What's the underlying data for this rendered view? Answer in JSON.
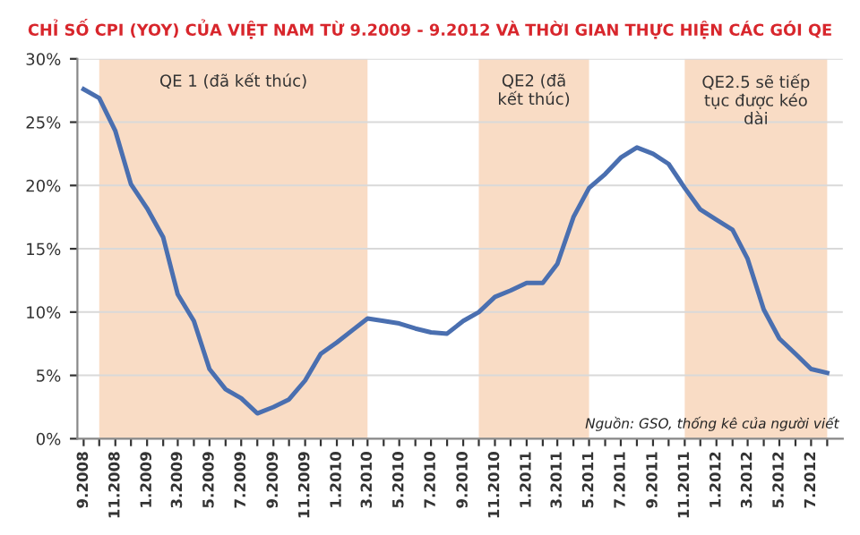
{
  "chart_data": {
    "type": "line",
    "title": "CHỈ SỐ CPI (YOY) CỦA VIỆT NAM TỪ 9.2009 - 9.2012 VÀ THỜI GIAN THỰC HIỆN CÁC GÓI QE",
    "x": [
      "2008-09",
      "2008-10",
      "2008-11",
      "2008-12",
      "2009-01",
      "2009-02",
      "2009-03",
      "2009-04",
      "2009-05",
      "2009-06",
      "2009-07",
      "2009-08",
      "2009-09",
      "2009-10",
      "2009-11",
      "2009-12",
      "2010-01",
      "2010-02",
      "2010-03",
      "2010-04",
      "2010-05",
      "2010-06",
      "2010-07",
      "2010-08",
      "2010-09",
      "2010-10",
      "2010-11",
      "2010-12",
      "2011-01",
      "2011-02",
      "2011-03",
      "2011-04",
      "2011-05",
      "2011-06",
      "2011-07",
      "2011-08",
      "2011-09",
      "2011-10",
      "2011-11",
      "2011-12",
      "2012-01",
      "2012-02",
      "2012-03",
      "2012-04",
      "2012-05",
      "2012-06",
      "2012-07",
      "2012-08"
    ],
    "series": [
      {
        "color": "#4a6fb0",
        "values": [
          27.6,
          26.9,
          24.3,
          20.1,
          18.2,
          15.9,
          11.4,
          9.3,
          5.5,
          3.9,
          3.2,
          2.0,
          2.5,
          3.1,
          4.6,
          6.7,
          7.6,
          8.6,
          9.5,
          9.3,
          9.1,
          8.7,
          8.4,
          8.3,
          9.3,
          10.0,
          11.2,
          11.7,
          12.3,
          12.3,
          13.8,
          17.5,
          19.8,
          20.9,
          22.2,
          23.0,
          22.5,
          21.7,
          19.8,
          18.1,
          17.3,
          16.5,
          14.2,
          10.2,
          7.9,
          6.7,
          5.5,
          5.2
        ]
      }
    ],
    "xlim": [
      "2008-08-20",
      "2012-08-31"
    ],
    "xticks": [
      {
        "value": "2008-09",
        "label": "9.2008"
      },
      {
        "value": "2008-10",
        "label": null
      },
      {
        "value": "2008-11",
        "label": "11.2008"
      },
      {
        "value": "2008-12",
        "label": null
      },
      {
        "value": "2009-01",
        "label": "1.2009"
      },
      {
        "value": "2009-02",
        "label": null
      },
      {
        "value": "2009-03",
        "label": "3.2009"
      },
      {
        "value": "2009-04",
        "label": null
      },
      {
        "value": "2009-05",
        "label": "5.2009"
      },
      {
        "value": "2009-06",
        "label": null
      },
      {
        "value": "2009-07",
        "label": "7.2009"
      },
      {
        "value": "2009-08",
        "label": null
      },
      {
        "value": "2009-09",
        "label": "9.2009"
      },
      {
        "value": "2009-10",
        "label": null
      },
      {
        "value": "2009-11",
        "label": "11.2009"
      },
      {
        "value": "2009-12",
        "label": null
      },
      {
        "value": "2010-01",
        "label": "1.2010"
      },
      {
        "value": "2010-02",
        "label": null
      },
      {
        "value": "2010-03",
        "label": "3.2010"
      },
      {
        "value": "2010-04",
        "label": null
      },
      {
        "value": "2010-05",
        "label": "5.2010"
      },
      {
        "value": "2010-06",
        "label": null
      },
      {
        "value": "2010-07",
        "label": "7.2010"
      },
      {
        "value": "2010-08",
        "label": null
      },
      {
        "value": "2010-09",
        "label": "9.2010"
      },
      {
        "value": "2010-10",
        "label": null
      },
      {
        "value": "2010-11",
        "label": "11.2010"
      },
      {
        "value": "2010-12",
        "label": null
      },
      {
        "value": "2011-01",
        "label": "1.2011"
      },
      {
        "value": "2011-02",
        "label": null
      },
      {
        "value": "2011-03",
        "label": "3.2011"
      },
      {
        "value": "2011-04",
        "label": null
      },
      {
        "value": "2011-05",
        "label": "5.2011"
      },
      {
        "value": "2011-06",
        "label": null
      },
      {
        "value": "2011-07",
        "label": "7.2011"
      },
      {
        "value": "2011-08",
        "label": null
      },
      {
        "value": "2011-09",
        "label": "9.2011"
      },
      {
        "value": "2011-10",
        "label": null
      },
      {
        "value": "2011-11",
        "label": "11.2011"
      },
      {
        "value": "2011-12",
        "label": null
      },
      {
        "value": "2012-01",
        "label": "1.2012"
      },
      {
        "value": "2012-02",
        "label": null
      },
      {
        "value": "2012-03",
        "label": "3.2012"
      },
      {
        "value": "2012-04",
        "label": null
      },
      {
        "value": "2012-05",
        "label": "5.2012"
      },
      {
        "value": "2012-06",
        "label": null
      },
      {
        "value": "2012-07",
        "label": "7.2012"
      },
      {
        "value": "2012-08",
        "label": null
      }
    ],
    "ylim": [
      0,
      30
    ],
    "yticks": [
      {
        "value": 0,
        "label": "0%"
      },
      {
        "value": 5,
        "label": "5%"
      },
      {
        "value": 10,
        "label": "10%"
      },
      {
        "value": 15,
        "label": "15%"
      },
      {
        "value": 20,
        "label": "20%"
      },
      {
        "value": 25,
        "label": "25%"
      },
      {
        "value": 30,
        "label": "30%"
      }
    ],
    "grid": "y",
    "bands": [
      {
        "axis": "x",
        "from": "2008-10",
        "to": "2010-03",
        "label": "QE 1 (đã kết thúc)",
        "color": "#f9dcc5"
      },
      {
        "axis": "x",
        "from": "2010-10",
        "to": "2011-05",
        "label": "QE2 (đã\nkết thúc)",
        "color": "#f9dcc5"
      },
      {
        "axis": "x",
        "from": "2011-11",
        "to": "2012-08",
        "label": "QE2.5 sẽ tiếp\ntục được kéo\ndài",
        "color": "#f9dcc5"
      }
    ],
    "annotations": [
      "Nguồn: GSO, thống kê của người viết"
    ]
  }
}
